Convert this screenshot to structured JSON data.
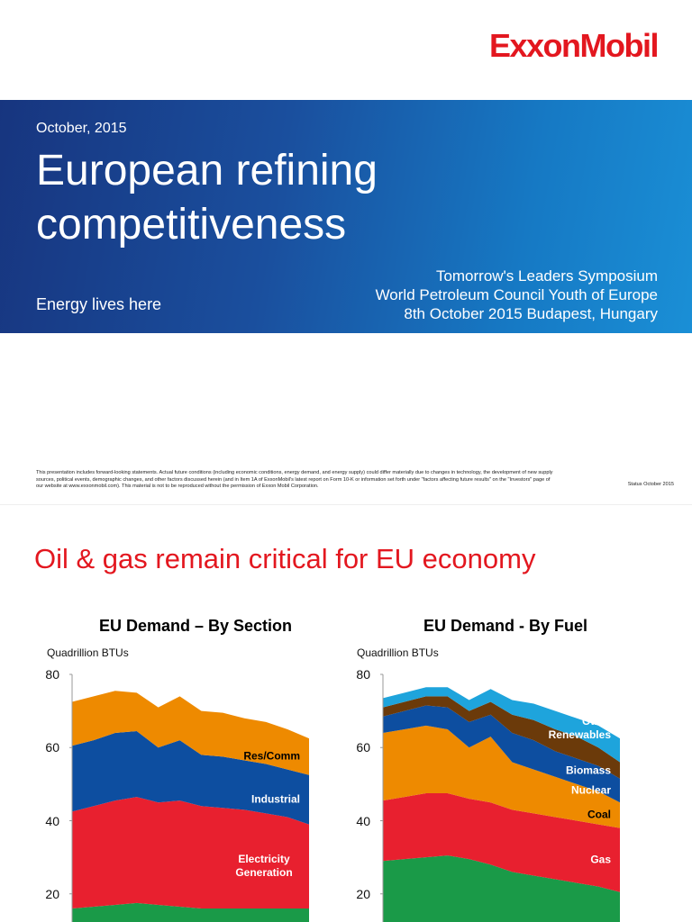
{
  "slide1": {
    "logo": "ExxonMobil",
    "date": "October, 2015",
    "title": "European refining competitiveness",
    "tagline": "Energy lives here",
    "event_lines": [
      "Tomorrow's Leaders Symposium",
      "World Petroleum Council Youth of Europe",
      "8th October 2015 Budapest, Hungary"
    ],
    "disclaimer": "This presentation includes forward-looking statements. Actual future conditions (including economic conditions, energy demand, and energy supply) could differ materially due to changes in technology, the development of new supply sources, political events, demographic changes, and other factors discussed herein (and in Item 1A of ExxonMobil's latest report on Form 10-K or information set forth under \"factors affecting future results\" on the \"Investors\" page of our website at www.exxonmobil.com). This material is not to be reproduced without the permission of Exxon Mobil Corporation.",
    "status": "Status October 2015"
  },
  "slide2": {
    "title": "Oil & gas remain critical for EU economy"
  },
  "chart_data": [
    {
      "type": "area",
      "stacked": true,
      "title": "EU Demand – By Section",
      "ylabel": "Quadrillion BTUs",
      "categories": [
        null,
        null,
        null,
        null,
        null,
        null,
        null,
        null,
        null,
        null,
        null,
        null
      ],
      "ylim": [
        0,
        80
      ],
      "yticks": [
        20,
        40,
        60,
        80
      ],
      "series": [
        {
          "color": "#1a9a48",
          "values": [
            16,
            16.5,
            17,
            17.5,
            17,
            16.5,
            16,
            16,
            16,
            16,
            16,
            16
          ]
        },
        {
          "name": "Electricity Generation",
          "color": "#e8202f",
          "values": [
            26.5,
            27.5,
            28.5,
            29,
            28,
            29,
            28,
            27.5,
            27,
            26,
            25,
            23
          ]
        },
        {
          "name": "Industrial",
          "color": "#0d4ea0",
          "values": [
            18,
            18,
            18.5,
            18,
            15,
            16.5,
            14,
            14,
            13.5,
            13.5,
            13,
            13.5
          ]
        },
        {
          "name": "Res/Comm",
          "color": "#ee8a00",
          "values": [
            12,
            12,
            11.5,
            10.5,
            11,
            12,
            12,
            12,
            11.5,
            11.5,
            11,
            10
          ]
        }
      ]
    },
    {
      "type": "area",
      "stacked": true,
      "title": "EU Demand - By Fuel",
      "ylabel": "Quadrillion BTUs",
      "categories": [
        null,
        null,
        null,
        null,
        null,
        null,
        null,
        null,
        null,
        null,
        null,
        null
      ],
      "ylim": [
        0,
        80
      ],
      "yticks": [
        20,
        40,
        60,
        80
      ],
      "series": [
        {
          "color": "#1a9a48",
          "values": [
            29,
            29.5,
            30,
            30.5,
            29.5,
            28,
            26,
            25,
            24,
            23,
            22,
            20.5
          ]
        },
        {
          "name": "Gas",
          "color": "#e8202f",
          "values": [
            16.5,
            17,
            17.5,
            17,
            16.5,
            17,
            17,
            17,
            17,
            17,
            17,
            17.5
          ]
        },
        {
          "name": "Coal",
          "color": "#ee8a00",
          "values": [
            18.5,
            18.5,
            18.5,
            17.5,
            14,
            18,
            13,
            12,
            11,
            10,
            9,
            7
          ]
        },
        {
          "name": "Nuclear",
          "color": "#0d4ea0",
          "values": [
            4.5,
            5,
            5.5,
            6,
            7,
            6,
            8,
            8,
            7,
            7,
            7,
            6.5
          ]
        },
        {
          "name": "Biomass",
          "color": "#6b3a0a",
          "values": [
            2.5,
            2.5,
            2.5,
            3,
            3,
            3.5,
            5,
            5.5,
            6,
            6,
            5,
            4.5
          ]
        },
        {
          "name": "Other Renewables",
          "color": "#1ea4dc",
          "values": [
            2.5,
            2.5,
            2.5,
            2.5,
            3,
            3.5,
            4,
            4.5,
            5,
            5,
            6,
            6.5
          ]
        }
      ]
    }
  ]
}
